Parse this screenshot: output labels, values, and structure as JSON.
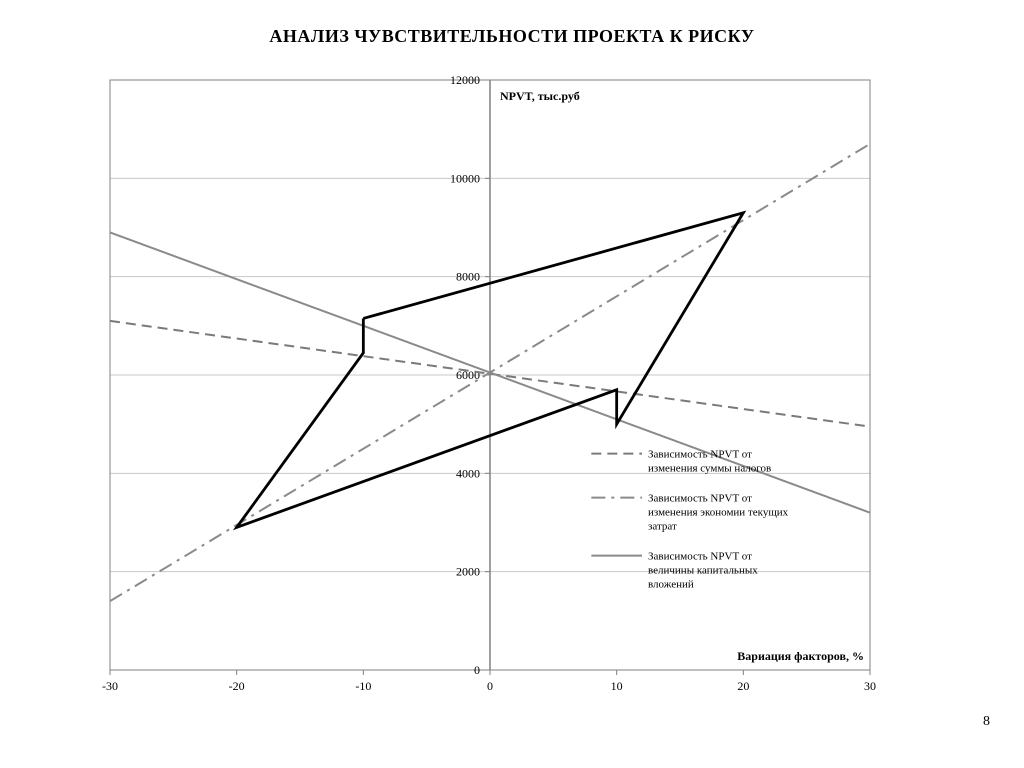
{
  "title": {
    "text": "АНАЛИЗ ЧУВСТВИТЕЛЬНОСТИ ПРОЕКТА К РИСКУ",
    "fontsize": 18,
    "color": "#000000"
  },
  "page_number": "8",
  "chart": {
    "type": "line",
    "background_color": "#ffffff",
    "border_color": "#808080",
    "grid_color": "#c8c8c8",
    "tick_color": "#808080",
    "tick_font_size": 12,
    "x": {
      "label": "Вариация факторов, %",
      "label_fontsize": 12,
      "label_weight": "bold",
      "min": -30,
      "max": 30,
      "tick_step": 10,
      "ticks": [
        -30,
        -20,
        -10,
        0,
        10,
        20,
        30
      ]
    },
    "y": {
      "label": "NPVT,  тыс.руб",
      "label_fontsize": 12,
      "label_weight": "bold",
      "min": 0,
      "max": 12000,
      "tick_step": 2000,
      "ticks": [
        0,
        2000,
        4000,
        6000,
        8000,
        10000,
        12000
      ]
    },
    "legend": {
      "x": 8,
      "y_start": 4400,
      "line_len": 4,
      "gap": 1.4,
      "fontsize": 11,
      "items": [
        {
          "series": "taxes",
          "label1": "Зависимость NPVT от",
          "label2": "изменения суммы налогов",
          "label3": ""
        },
        {
          "series": "savings",
          "label1": "Зависимость NPVT от",
          "label2": "изменения экономии текущих",
          "label3": "затрат"
        },
        {
          "series": "capex",
          "label1": "Зависимость NPVT от",
          "label2": "величины капитальных",
          "label3": "вложений"
        }
      ]
    },
    "series": {
      "taxes": {
        "name": "Зависимость NPVT от изменения суммы налогов",
        "color": "#7a7a7a",
        "line_width": 2,
        "dash": "10,6",
        "points": [
          {
            "x": -30,
            "y": 7100
          },
          {
            "x": 30,
            "y": 4950
          }
        ]
      },
      "savings": {
        "name": "Зависимость NPVT от изменения экономии текущих затрат",
        "color": "#8a8a8a",
        "line_width": 2,
        "dash": "14,6,3,6",
        "points": [
          {
            "x": -30,
            "y": 1400
          },
          {
            "x": 30,
            "y": 10700
          }
        ]
      },
      "capex": {
        "name": "Зависимость NPVT от величины капитальных вложений",
        "color": "#8a8a8a",
        "line_width": 2,
        "dash": "",
        "points": [
          {
            "x": -30,
            "y": 8900
          },
          {
            "x": 30,
            "y": 3200
          }
        ]
      },
      "envelope": {
        "name": "envelope",
        "color": "#000000",
        "line_width": 2.8,
        "dash": "",
        "points": [
          {
            "x": -10,
            "y": 7150
          },
          {
            "x": 20,
            "y": 9300
          },
          {
            "x": 10,
            "y": 5000
          },
          {
            "x": 10,
            "y": 5700
          },
          {
            "x": -20,
            "y": 2900
          },
          {
            "x": -10,
            "y": 6450
          },
          {
            "x": -10,
            "y": 7150
          }
        ]
      }
    }
  }
}
